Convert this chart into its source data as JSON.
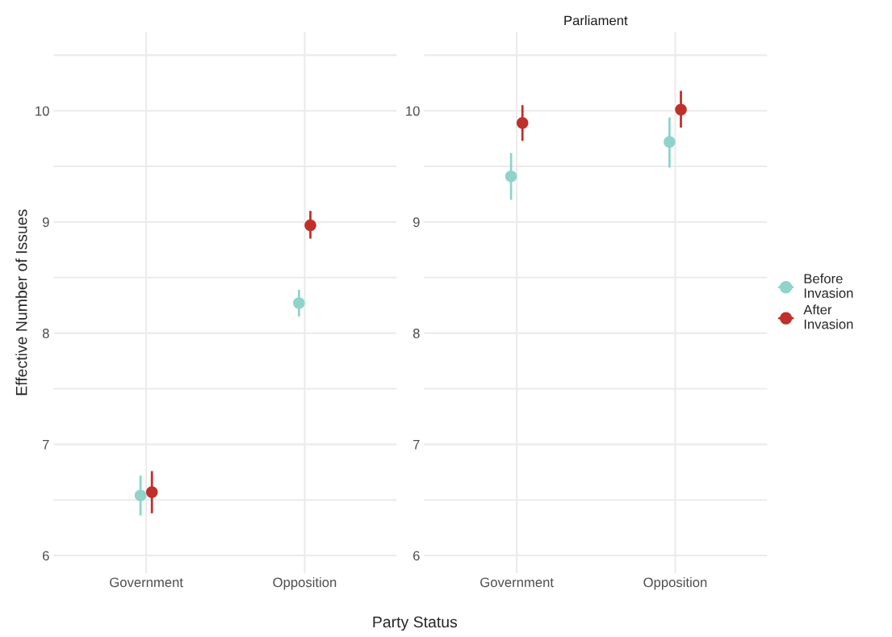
{
  "chart_data": [
    {
      "type": "scatter",
      "ylabel": "Effective Number of Issues",
      "xlabel": "Party Status",
      "categories": [
        "Government",
        "Opposition"
      ],
      "ylim": [
        5.84,
        10.71
      ],
      "yticks": [
        6,
        {
          "value": 6.5,
          "label": null
        },
        7,
        {
          "value": 7.5,
          "label": null
        },
        8,
        {
          "value": 8.5,
          "label": null
        },
        9,
        {
          "value": 9.5,
          "label": null
        },
        10,
        {
          "value": 10.5,
          "label": null
        }
      ],
      "grid": true,
      "marker": "circle",
      "series": [
        {
          "color": "#8fd3cb",
          "values": [
            6.54,
            8.27
          ],
          "errors": [
            [
              6.36,
              6.72
            ],
            [
              8.15,
              8.39
            ]
          ]
        },
        {
          "color": "#c0302b",
          "values": [
            6.57,
            8.97
          ],
          "errors": [
            [
              6.38,
              6.76
            ],
            [
              8.85,
              9.1
            ]
          ]
        }
      ]
    },
    {
      "type": "scatter",
      "title": "Parliament",
      "categories": [
        "Government",
        "Opposition"
      ],
      "ylim": [
        5.84,
        10.71
      ],
      "yticks": [
        6,
        {
          "value": 6.5,
          "label": null
        },
        7,
        {
          "value": 7.5,
          "label": null
        },
        8,
        {
          "value": 8.5,
          "label": null
        },
        9,
        {
          "value": 9.5,
          "label": null
        },
        10,
        {
          "value": 10.5,
          "label": null
        }
      ],
      "grid": true,
      "marker": "circle",
      "legend": "right",
      "series": [
        {
          "name": "Before Invasion",
          "color": "#8fd3cb",
          "values": [
            9.41,
            9.72
          ],
          "errors": [
            [
              9.2,
              9.62
            ],
            [
              9.49,
              9.94
            ]
          ]
        },
        {
          "name": "After Invasion",
          "color": "#c0302b",
          "values": [
            9.89,
            10.01
          ],
          "errors": [
            [
              9.73,
              10.05
            ],
            [
              9.85,
              10.18
            ]
          ]
        }
      ]
    }
  ]
}
